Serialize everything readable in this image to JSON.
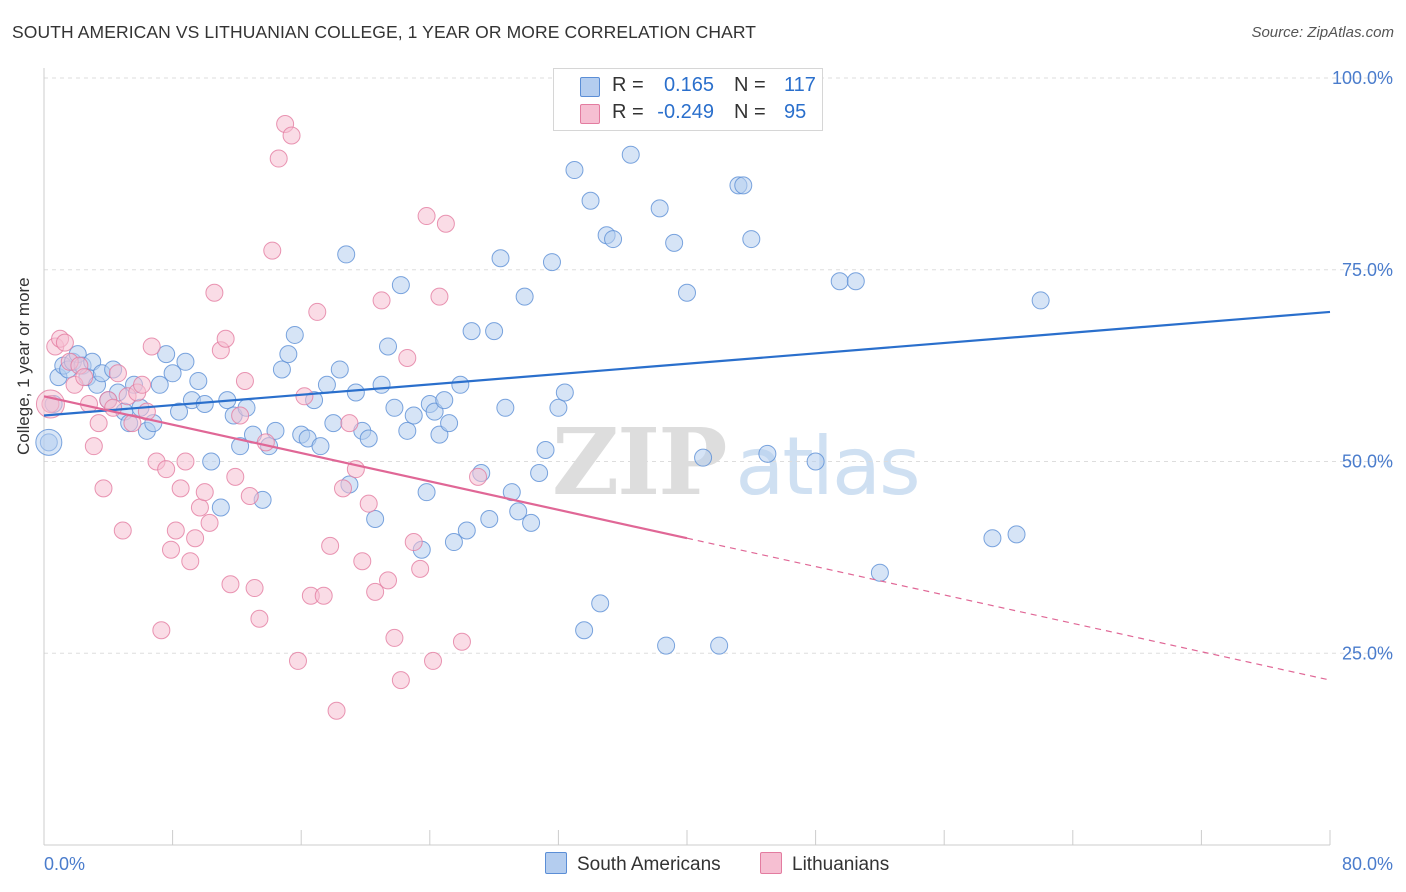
{
  "title": "SOUTH AMERICAN VS LITHUANIAN COLLEGE, 1 YEAR OR MORE CORRELATION CHART",
  "source": "Source: ZipAtlas.com",
  "watermark": {
    "zip": "ZIP",
    "atlas": "atlas"
  },
  "colors": {
    "blue": "#5b8ed6",
    "blue_fill": "#b4cdef",
    "blue_line": "#2a6fcc",
    "pink": "#e37ca0",
    "pink_fill": "#f6bfd2",
    "pink_line": "#e06796",
    "axis_text": "#4a7ccc",
    "grid": "#dddddd"
  },
  "legend": {
    "rows": [
      {
        "r_label": "R =",
        "r_value": "0.165",
        "n_label": "N =",
        "n_value": "117"
      },
      {
        "r_label": "R =",
        "r_value": "-0.249",
        "n_label": "N =",
        "n_value": "95"
      }
    ]
  },
  "bottom_legend": {
    "south_americans": "South Americans",
    "lithuanians": "Lithuanians"
  },
  "chart_data": {
    "type": "scatter",
    "title": "SOUTH AMERICAN VS LITHUANIAN COLLEGE, 1 YEAR OR MORE CORRELATION CHART",
    "xlabel": "",
    "ylabel": "College, 1 year or more",
    "xlim": [
      0,
      80
    ],
    "ylim": [
      0,
      100
    ],
    "x_tick_labels": [
      "0.0%",
      "80.0%"
    ],
    "y_tick_labels": [
      "100.0%",
      "75.0%",
      "50.0%",
      "25.0%"
    ],
    "y_ticks": [
      100,
      75,
      50,
      25
    ],
    "x_ticks": [
      0,
      8,
      16,
      24,
      32,
      40,
      48,
      56,
      64,
      72,
      80
    ],
    "grid": "horizontal dashed",
    "series": [
      {
        "name": "South Americans",
        "r": 0.165,
        "n": 117,
        "trend": {
          "x": [
            0,
            80
          ],
          "y": [
            56.0,
            69.5
          ]
        },
        "points": [
          [
            0.3,
            52.5
          ],
          [
            0.6,
            57.5
          ],
          [
            0.9,
            61
          ],
          [
            1.2,
            62.5
          ],
          [
            1.5,
            62
          ],
          [
            1.8,
            63
          ],
          [
            2.1,
            64
          ],
          [
            2.4,
            62.5
          ],
          [
            2.7,
            61
          ],
          [
            3.0,
            63
          ],
          [
            3.3,
            60
          ],
          [
            3.6,
            61.5
          ],
          [
            4.0,
            58
          ],
          [
            4.3,
            62
          ],
          [
            4.6,
            59
          ],
          [
            5.0,
            56.5
          ],
          [
            5.3,
            55
          ],
          [
            5.6,
            60
          ],
          [
            6.0,
            57
          ],
          [
            6.4,
            54
          ],
          [
            6.8,
            55
          ],
          [
            7.2,
            60
          ],
          [
            7.6,
            64
          ],
          [
            8.0,
            61.5
          ],
          [
            8.4,
            56.5
          ],
          [
            8.8,
            63
          ],
          [
            9.2,
            58
          ],
          [
            9.6,
            60.5
          ],
          [
            10.0,
            57.5
          ],
          [
            10.4,
            50
          ],
          [
            11.0,
            44
          ],
          [
            11.4,
            58
          ],
          [
            11.8,
            56
          ],
          [
            12.2,
            52
          ],
          [
            12.6,
            57
          ],
          [
            13.0,
            53.5
          ],
          [
            13.6,
            45
          ],
          [
            14.0,
            52
          ],
          [
            14.4,
            54
          ],
          [
            14.8,
            62
          ],
          [
            15.2,
            64
          ],
          [
            15.6,
            66.5
          ],
          [
            16.0,
            53.5
          ],
          [
            16.4,
            53
          ],
          [
            16.8,
            58
          ],
          [
            17.2,
            52
          ],
          [
            17.6,
            60
          ],
          [
            18.0,
            55
          ],
          [
            18.4,
            62
          ],
          [
            18.8,
            77
          ],
          [
            19.0,
            47
          ],
          [
            19.4,
            59
          ],
          [
            19.8,
            54
          ],
          [
            20.2,
            53
          ],
          [
            20.6,
            42.5
          ],
          [
            21.0,
            60
          ],
          [
            21.4,
            65
          ],
          [
            21.8,
            57
          ],
          [
            22.2,
            73
          ],
          [
            22.6,
            54
          ],
          [
            23.0,
            56
          ],
          [
            23.5,
            38.5
          ],
          [
            23.8,
            46
          ],
          [
            24.0,
            57.5
          ],
          [
            24.3,
            56.5
          ],
          [
            24.6,
            53.5
          ],
          [
            24.9,
            58
          ],
          [
            25.2,
            55
          ],
          [
            25.5,
            39.5
          ],
          [
            25.9,
            60
          ],
          [
            26.3,
            41
          ],
          [
            26.6,
            67
          ],
          [
            27.2,
            48.5
          ],
          [
            27.7,
            42.5
          ],
          [
            28.0,
            67
          ],
          [
            28.4,
            76.5
          ],
          [
            28.7,
            57
          ],
          [
            29.1,
            46
          ],
          [
            29.5,
            43.5
          ],
          [
            29.9,
            71.5
          ],
          [
            30.3,
            42
          ],
          [
            30.8,
            48.5
          ],
          [
            31.2,
            51.5
          ],
          [
            31.6,
            76
          ],
          [
            32.0,
            57
          ],
          [
            32.4,
            59
          ],
          [
            33.0,
            88
          ],
          [
            33.6,
            28
          ],
          [
            34.0,
            84
          ],
          [
            34.6,
            31.5
          ],
          [
            35.0,
            79.5
          ],
          [
            35.4,
            79
          ],
          [
            36.5,
            90
          ],
          [
            38.3,
            83
          ],
          [
            38.7,
            26
          ],
          [
            39.2,
            78.5
          ],
          [
            40.0,
            72
          ],
          [
            41.0,
            50.5
          ],
          [
            42.0,
            26
          ],
          [
            43.2,
            86
          ],
          [
            43.5,
            86
          ],
          [
            44.0,
            79
          ],
          [
            45.0,
            51
          ],
          [
            48.0,
            50
          ],
          [
            49.5,
            73.5
          ],
          [
            50.5,
            73.5
          ],
          [
            52.0,
            35.5
          ],
          [
            59.0,
            40
          ],
          [
            60.5,
            40.5
          ],
          [
            62.0,
            71
          ]
        ]
      },
      {
        "name": "Lithuanians",
        "r": -0.249,
        "n": 95,
        "trend": {
          "x": [
            0,
            40
          ],
          "y": [
            58.5,
            40.0
          ]
        },
        "trend_extrapolated": {
          "x": [
            40,
            80
          ],
          "y": [
            40.0,
            21.5
          ]
        },
        "points": [
          [
            0.4,
            57.5
          ],
          [
            0.7,
            65
          ],
          [
            1.0,
            66
          ],
          [
            1.3,
            65.5
          ],
          [
            1.6,
            63
          ],
          [
            1.9,
            60
          ],
          [
            2.2,
            62.5
          ],
          [
            2.5,
            61
          ],
          [
            2.8,
            57.5
          ],
          [
            3.1,
            52
          ],
          [
            3.4,
            55
          ],
          [
            3.7,
            46.5
          ],
          [
            4.0,
            58
          ],
          [
            4.3,
            57
          ],
          [
            4.6,
            61.5
          ],
          [
            4.9,
            41
          ],
          [
            5.2,
            58.5
          ],
          [
            5.5,
            55
          ],
          [
            5.8,
            59
          ],
          [
            6.1,
            60
          ],
          [
            6.4,
            56.5
          ],
          [
            6.7,
            65
          ],
          [
            7.0,
            50
          ],
          [
            7.3,
            28
          ],
          [
            7.6,
            49
          ],
          [
            7.9,
            38.5
          ],
          [
            8.2,
            41
          ],
          [
            8.5,
            46.5
          ],
          [
            8.8,
            50
          ],
          [
            9.1,
            37
          ],
          [
            9.4,
            40
          ],
          [
            9.7,
            44
          ],
          [
            10.0,
            46
          ],
          [
            10.3,
            42
          ],
          [
            10.6,
            72
          ],
          [
            11.0,
            64.5
          ],
          [
            11.3,
            66
          ],
          [
            11.6,
            34
          ],
          [
            11.9,
            48
          ],
          [
            12.2,
            56
          ],
          [
            12.5,
            60.5
          ],
          [
            12.8,
            45.5
          ],
          [
            13.1,
            33.5
          ],
          [
            13.4,
            29.5
          ],
          [
            13.8,
            52.5
          ],
          [
            14.2,
            77.5
          ],
          [
            14.6,
            89.5
          ],
          [
            15.0,
            94
          ],
          [
            15.4,
            92.5
          ],
          [
            15.8,
            24
          ],
          [
            16.2,
            58.5
          ],
          [
            16.6,
            32.5
          ],
          [
            17.0,
            69.5
          ],
          [
            17.4,
            32.5
          ],
          [
            17.8,
            39
          ],
          [
            18.2,
            17.5
          ],
          [
            18.6,
            46.5
          ],
          [
            19.0,
            55
          ],
          [
            19.4,
            49
          ],
          [
            19.8,
            37
          ],
          [
            20.2,
            44.5
          ],
          [
            20.6,
            33
          ],
          [
            21.0,
            71
          ],
          [
            21.4,
            34.5
          ],
          [
            21.8,
            27
          ],
          [
            22.2,
            21.5
          ],
          [
            22.6,
            63.5
          ],
          [
            23.0,
            39.5
          ],
          [
            23.4,
            36
          ],
          [
            23.8,
            82
          ],
          [
            24.2,
            24
          ],
          [
            24.6,
            71.5
          ],
          [
            25.0,
            81
          ],
          [
            26.0,
            26.5
          ],
          [
            27.0,
            48
          ]
        ]
      }
    ]
  }
}
